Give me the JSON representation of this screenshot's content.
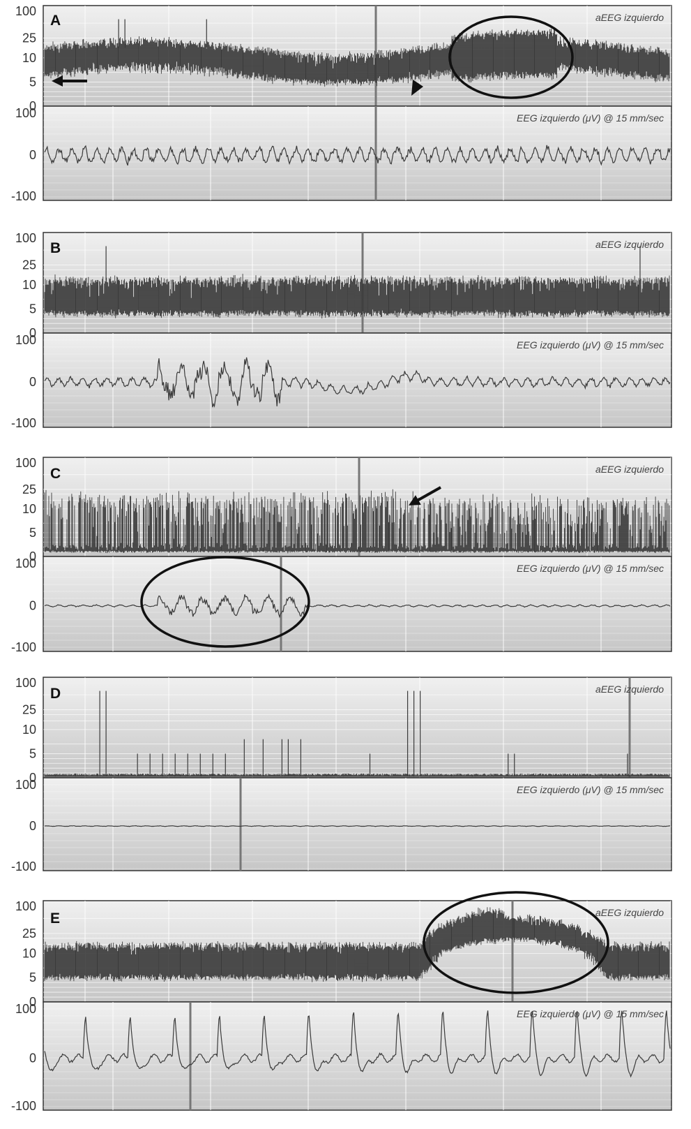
{
  "chart_data": [
    {
      "type": "line",
      "panel": "A",
      "aeeg": {
        "label": "aEEG izquierdo",
        "y_ticks": [
          "100",
          "25",
          "10",
          "5",
          "0"
        ],
        "trace_description": "continuous amplitude band, lower margin ~5–10 µV, upper margin ~10–25 µV",
        "lower_margin": 6.5,
        "upper_margin": 16,
        "variability": 0.55,
        "spikes": [
          0.12,
          0.13,
          0.26
        ]
      },
      "eeg": {
        "label": "EEG izquierdo",
        "unit_label": "(μV) @ 15 mm/sec",
        "y_ticks": [
          "100",
          "0",
          "-100"
        ],
        "ylim": [
          -100,
          100
        ],
        "amplitude_uv": 25,
        "bursts": []
      },
      "annotations": [
        "arrow pointing left at lower margin",
        "arrowhead",
        "ellipse around sleep-wake cycling band"
      ]
    },
    {
      "type": "line",
      "panel": "B",
      "aeeg": {
        "label": "aEEG izquierdo",
        "y_ticks": [
          "100",
          "25",
          "10",
          "5",
          "0"
        ],
        "trace_description": "dense band, lower margin ~3–5 µV, upper margin ~10–25 µV",
        "lower_margin": 4,
        "upper_margin": 12,
        "variability": 0.7,
        "spikes": [
          0.1,
          0.95
        ]
      },
      "eeg": {
        "label": "EEG izquierdo",
        "unit_label": "(μV) @ 15 mm/sec",
        "y_ticks": [
          "100",
          "0",
          "-100"
        ],
        "ylim": [
          -100,
          100
        ],
        "amplitude_uv": 15,
        "bursts": [
          [
            0.18,
            0.38,
            55
          ]
        ]
      },
      "annotations": []
    },
    {
      "type": "line",
      "panel": "C",
      "aeeg": {
        "label": "aEEG izquierdo",
        "y_ticks": [
          "100",
          "25",
          "10",
          "5",
          "0"
        ],
        "trace_description": "burst-suppression: baseline near 1 µV with tall spikes up to ~25 µV",
        "lower_margin": 1,
        "upper_margin": 14,
        "variability": 0.9,
        "spikes": []
      },
      "eeg": {
        "label": "EEG izquierdo",
        "unit_label": "(μV) @ 15 mm/sec",
        "y_ticks": [
          "100",
          "0",
          "-100"
        ],
        "ylim": [
          -100,
          100
        ],
        "amplitude_uv": 3,
        "bursts": [
          [
            0.18,
            0.42,
            25
          ]
        ]
      },
      "annotations": [
        "arrow pointing down-left at spikes",
        "ellipse around EEG burst"
      ]
    },
    {
      "type": "line",
      "panel": "D",
      "aeeg": {
        "label": "aEEG izquierdo",
        "y_ticks": [
          "100",
          "25",
          "10",
          "5",
          "0"
        ],
        "trace_description": "flat trace near 0 µV with isolated spikes",
        "lower_margin": 0.3,
        "upper_margin": 0.6,
        "variability": 0.1,
        "spikes": [
          0.09,
          0.1,
          0.15,
          0.17,
          0.19,
          0.21,
          0.23,
          0.25,
          0.27,
          0.29,
          0.32,
          0.35,
          0.38,
          0.39,
          0.41,
          0.52,
          0.58,
          0.59,
          0.6,
          0.74,
          0.75,
          0.93
        ]
      },
      "eeg": {
        "label": "EEG izquierdo",
        "unit_label": "(μV) @ 15 mm/sec",
        "y_ticks": [
          "100",
          "0",
          "-100"
        ],
        "ylim": [
          -100,
          100
        ],
        "amplitude_uv": 1,
        "bursts": []
      },
      "annotations": []
    },
    {
      "type": "line",
      "panel": "E",
      "aeeg": {
        "label": "aEEG izquierdo",
        "y_ticks": [
          "100",
          "25",
          "10",
          "5",
          "0"
        ],
        "trace_description": "band with arch-shaped elevation (seizure) around 60–90% of width",
        "lower_margin": 5,
        "upper_margin": 14,
        "variability": 0.55,
        "arch": [
          0.6,
          0.9
        ],
        "spikes": []
      },
      "eeg": {
        "label": "EEG izquierdo",
        "unit_label": "(μV) @ 15 mm/sec",
        "y_ticks": [
          "100",
          "0",
          "-100"
        ],
        "ylim": [
          -100,
          100
        ],
        "amplitude_uv": 70,
        "periodic_discharges": 14,
        "bursts": []
      },
      "annotations": [
        "ellipse around arch-shaped elevation"
      ]
    }
  ],
  "colors": {
    "panel_bg_top": "#f0f0f0",
    "panel_bg_bottom": "#c6c6c6",
    "trace": "#3a3a3a",
    "grid": "#ffffff",
    "frame": "#333333"
  }
}
